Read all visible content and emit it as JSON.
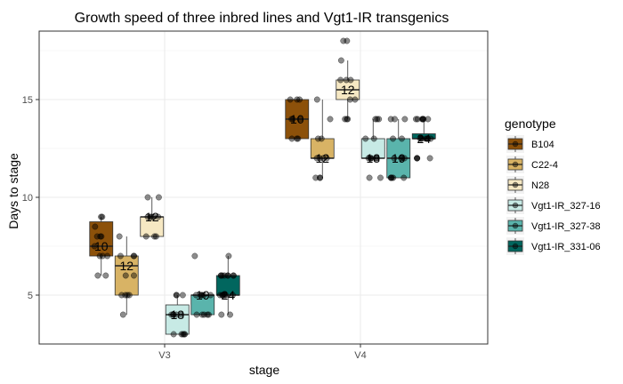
{
  "chart_data": {
    "type": "boxplot",
    "title": "Growth speed of three inbred lines and Vgt1-IR transgenics",
    "xlabel": "stage",
    "ylabel": "Days to stage",
    "ylim": [
      2.5,
      18.5
    ],
    "yticks": [
      5,
      10,
      15
    ],
    "grid": true,
    "legend_position": "right",
    "legend_title": "genotype",
    "categories": [
      "V3",
      "V4"
    ],
    "series": [
      {
        "name": "B104",
        "color": "#8c510a",
        "boxes": [
          {
            "stage": "V3",
            "min": 6,
            "q1": 7,
            "median": 7.5,
            "q3": 8.75,
            "max": 9,
            "n": "10",
            "points": [
              9,
              9,
              8.5,
              8,
              8,
              8,
              7.5,
              7,
              7,
              7,
              6,
              6
            ]
          },
          {
            "stage": "V4",
            "min": 13,
            "q1": 13,
            "median": 14,
            "q3": 15,
            "max": 15,
            "n": "10",
            "points": [
              15,
              15,
              15,
              14,
              14,
              14,
              13,
              13,
              13
            ]
          }
        ]
      },
      {
        "name": "C22-4",
        "color": "#d8b365",
        "boxes": [
          {
            "stage": "V3",
            "min": 4,
            "q1": 5,
            "median": 6.5,
            "q3": 7,
            "max": 8,
            "n": "12",
            "points": [
              8,
              7,
              7,
              7,
              6,
              6,
              5,
              5,
              5,
              5,
              4
            ]
          },
          {
            "stage": "V4",
            "min": 11,
            "q1": 12,
            "median": 12,
            "q3": 13,
            "max": 15,
            "n": "12",
            "points": [
              15,
              14,
              13,
              13,
              12,
              12,
              12,
              12,
              11,
              11,
              11
            ]
          }
        ]
      },
      {
        "name": "N28",
        "color": "#f6e8c3",
        "boxes": [
          {
            "stage": "V3",
            "min": 8,
            "q1": 8,
            "median": 9,
            "q3": 9,
            "max": 10,
            "n": "12",
            "points": [
              10,
              10,
              9,
              9,
              9,
              9,
              9,
              8,
              8,
              8
            ]
          },
          {
            "stage": "V4",
            "min": 14,
            "q1": 15,
            "median": 15.5,
            "q3": 16,
            "max": 17,
            "n": "12",
            "points": [
              18,
              18,
              17,
              16,
              16,
              16,
              15,
              15,
              14,
              14,
              14
            ]
          }
        ]
      },
      {
        "name": "Vgt1-IR_327-16",
        "color": "#c7eae5",
        "boxes": [
          {
            "stage": "V3",
            "min": 3,
            "q1": 3,
            "median": 4,
            "q3": 4.5,
            "max": 5,
            "n": "18",
            "points": [
              5,
              5,
              5,
              4,
              4,
              4,
              4,
              4,
              3,
              3,
              3,
              3,
              3
            ]
          },
          {
            "stage": "V4",
            "min": 12,
            "q1": 12,
            "median": 12,
            "q3": 13,
            "max": 14,
            "n": "18",
            "points": [
              14,
              14,
              14,
              13,
              13,
              12,
              12,
              12,
              12,
              12,
              12,
              11,
              11
            ]
          }
        ]
      },
      {
        "name": "Vgt1-IR_327-38",
        "color": "#5ab4ac",
        "boxes": [
          {
            "stage": "V3",
            "min": 4,
            "q1": 4,
            "median": 5,
            "q3": 5,
            "max": 5,
            "n": "19",
            "points": [
              7,
              5,
              5,
              5,
              5,
              5,
              5,
              4,
              4,
              4,
              4,
              4
            ]
          },
          {
            "stage": "V4",
            "min": 11,
            "q1": 11,
            "median": 12,
            "q3": 13,
            "max": 14,
            "n": "19",
            "points": [
              14,
              14,
              14,
              13,
              13,
              12,
              12,
              12,
              12,
              11,
              11,
              11,
              11,
              11
            ]
          }
        ]
      },
      {
        "name": "Vgt1-IR_331-06",
        "color": "#01665e",
        "boxes": [
          {
            "stage": "V3",
            "min": 4,
            "q1": 5,
            "median": 5,
            "q3": 6,
            "max": 7,
            "n": "24",
            "points": [
              7,
              6,
              6,
              6,
              6,
              6,
              6,
              6,
              6,
              5,
              5,
              5,
              5,
              5,
              5,
              5,
              4,
              4
            ]
          },
          {
            "stage": "V4",
            "min": 13,
            "q1": 13,
            "median": 13,
            "q3": 13.25,
            "max": 14,
            "n": "24",
            "points": [
              14,
              14,
              14,
              14,
              14,
              14,
              14,
              13,
              13,
              13,
              13,
              13,
              13,
              13,
              12,
              12,
              12,
              12
            ]
          }
        ]
      }
    ]
  }
}
